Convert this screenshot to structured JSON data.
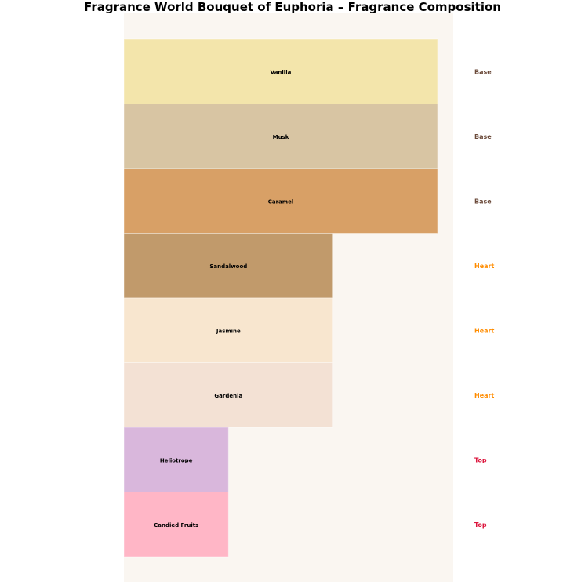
{
  "chart_data": {
    "type": "bar",
    "orientation": "horizontal",
    "title": "Fragrance World Bouquet of Euphoria – Fragrance Composition",
    "xlabel": "",
    "ylabel": "",
    "xlim": [
      0,
      3.15
    ],
    "grid": false,
    "axes_visible": false,
    "background": "#FAF6F1",
    "categories": [
      "Vanilla",
      "Musk",
      "Caramel",
      "Sandalwood",
      "Jasmine",
      "Gardenia",
      "Heliotrope",
      "Candied Fruits"
    ],
    "values": [
      3,
      3,
      3,
      2,
      2,
      2,
      1,
      1
    ],
    "notes": [
      "Base",
      "Base",
      "Base",
      "Heart",
      "Heart",
      "Heart",
      "Top",
      "Top"
    ],
    "bar_colors": [
      "#F3E5AB",
      "#D8C5A3",
      "#D8A066",
      "#C19A6B",
      "#F8E6CF",
      "#F3E1D4",
      "#D9B7DC",
      "#FFB6C6"
    ],
    "note_colors": {
      "Base": "#6B4A3A",
      "Heart": "#FF8C00",
      "Top": "#DC143C"
    }
  }
}
